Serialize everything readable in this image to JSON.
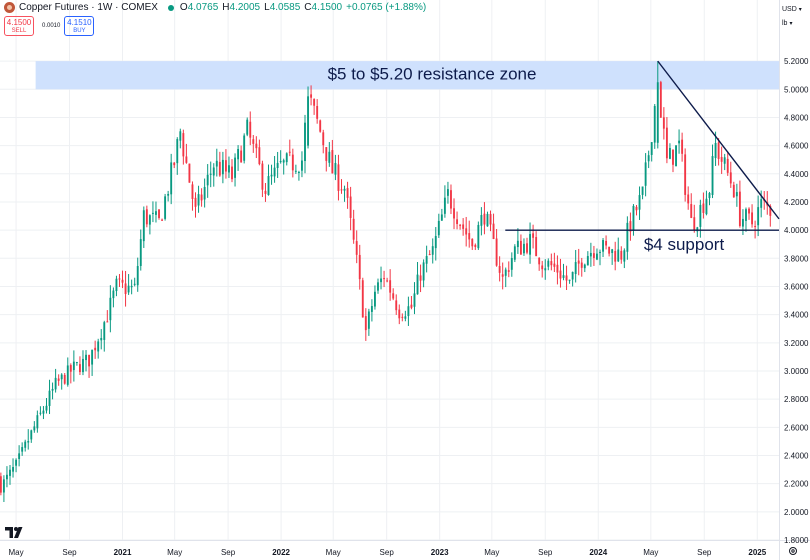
{
  "header": {
    "title": "Copper Futures · 1W · COMEX",
    "ohlc": [
      {
        "k": "O",
        "v": "4.0765"
      },
      {
        "k": "H",
        "v": "4.2005"
      },
      {
        "k": "L",
        "v": "4.0585"
      },
      {
        "k": "C",
        "v": "4.1500"
      },
      {
        "k": "",
        "v": "+0.0765 (+1.88%)"
      }
    ]
  },
  "trade": {
    "sell_price": "4.1500",
    "sell_label": "SELL",
    "spread": "0.0010",
    "buy_price": "4.1510",
    "buy_label": "BUY"
  },
  "controls": {
    "currency": "USD",
    "unit": "lb"
  },
  "colors": {
    "up": "#089981",
    "down": "#f23645",
    "zone": "#cfe1fd",
    "annotation": "#0d1b4b",
    "grid": "#eef0f3"
  },
  "icons": {
    "logo": "tradingview-logo-icon",
    "settings": "gear-icon",
    "symbol": "copper-icon"
  },
  "chart_data": {
    "type": "candlestick",
    "title": "",
    "xlabel": "",
    "ylabel": "",
    "ylim": [
      1.8,
      5.35
    ],
    "xlim": [
      "2020-03-25",
      "2025-02-20"
    ],
    "grid": true,
    "y_ticks": [
      "1.8000",
      "2.0000",
      "2.2000",
      "2.4000",
      "2.6000",
      "2.8000",
      "3.0000",
      "3.2000",
      "3.4000",
      "3.6000",
      "3.8000",
      "4.0000",
      "4.2000",
      "4.4000",
      "4.6000",
      "4.8000",
      "5.0000",
      "5.2000"
    ],
    "x_ticks": [
      {
        "label": "May",
        "date": "2020-05-01"
      },
      {
        "label": "Sep",
        "date": "2020-09-01"
      },
      {
        "label": "2021",
        "date": "2021-01-01"
      },
      {
        "label": "May",
        "date": "2021-05-01"
      },
      {
        "label": "Sep",
        "date": "2021-09-01"
      },
      {
        "label": "2022",
        "date": "2022-01-01"
      },
      {
        "label": "May",
        "date": "2022-05-01"
      },
      {
        "label": "Sep",
        "date": "2022-09-01"
      },
      {
        "label": "2023",
        "date": "2023-01-01"
      },
      {
        "label": "May",
        "date": "2023-05-01"
      },
      {
        "label": "Sep",
        "date": "2023-09-01"
      },
      {
        "label": "2024",
        "date": "2024-01-01"
      },
      {
        "label": "May",
        "date": "2024-05-01"
      },
      {
        "label": "Sep",
        "date": "2024-09-01"
      },
      {
        "label": "2025",
        "date": "2025-01-01"
      }
    ],
    "close_anchors": [
      [
        "2020-03-27",
        2.18
      ],
      [
        "2020-05-01",
        2.33
      ],
      [
        "2020-06-12",
        2.6
      ],
      [
        "2020-07-31",
        2.9
      ],
      [
        "2020-09-11",
        3.02
      ],
      [
        "2020-10-16",
        3.08
      ],
      [
        "2020-11-27",
        3.4
      ],
      [
        "2020-12-18",
        3.6
      ],
      [
        "2021-01-29",
        3.58
      ],
      [
        "2021-02-19",
        4.1
      ],
      [
        "2021-03-26",
        4.05
      ],
      [
        "2021-04-30",
        4.48
      ],
      [
        "2021-05-14",
        4.7
      ],
      [
        "2021-06-18",
        4.12
      ],
      [
        "2021-07-30",
        4.47
      ],
      [
        "2021-09-10",
        4.38
      ],
      [
        "2021-10-15",
        4.7
      ],
      [
        "2021-11-26",
        4.3
      ],
      [
        "2021-12-31",
        4.45
      ],
      [
        "2022-02-18",
        4.5
      ],
      [
        "2022-03-04",
        4.95
      ],
      [
        "2022-04-01",
        4.7
      ],
      [
        "2022-04-29",
        4.42
      ],
      [
        "2022-05-27",
        4.3
      ],
      [
        "2022-06-24",
        3.77
      ],
      [
        "2022-07-15",
        3.28
      ],
      [
        "2022-08-05",
        3.56
      ],
      [
        "2022-08-26",
        3.68
      ],
      [
        "2022-09-30",
        3.43
      ],
      [
        "2022-10-28",
        3.45
      ],
      [
        "2022-11-18",
        3.7
      ],
      [
        "2022-12-16",
        3.85
      ],
      [
        "2023-01-20",
        4.25
      ],
      [
        "2023-02-24",
        4.02
      ],
      [
        "2023-03-17",
        3.9
      ],
      [
        "2023-04-14",
        4.12
      ],
      [
        "2023-05-26",
        3.65
      ],
      [
        "2023-06-23",
        3.86
      ],
      [
        "2023-07-28",
        3.92
      ],
      [
        "2023-08-25",
        3.78
      ],
      [
        "2023-09-29",
        3.72
      ],
      [
        "2023-10-27",
        3.62
      ],
      [
        "2023-11-24",
        3.8
      ],
      [
        "2023-12-29",
        3.89
      ],
      [
        "2024-01-26",
        3.85
      ],
      [
        "2024-02-23",
        3.83
      ],
      [
        "2024-03-15",
        4.05
      ],
      [
        "2024-04-12",
        4.25
      ],
      [
        "2024-04-26",
        4.55
      ],
      [
        "2024-05-17",
        5.05
      ],
      [
        "2024-06-07",
        4.48
      ],
      [
        "2024-07-05",
        4.6
      ],
      [
        "2024-08-02",
        4.05
      ],
      [
        "2024-08-16",
        4.1
      ],
      [
        "2024-09-13",
        4.3
      ],
      [
        "2024-09-27",
        4.6
      ],
      [
        "2024-10-18",
        4.45
      ],
      [
        "2024-11-08",
        4.3
      ],
      [
        "2024-11-22",
        4.1
      ],
      [
        "2024-12-20",
        4.05
      ],
      [
        "2025-01-10",
        4.18
      ],
      [
        "2025-01-31",
        4.15
      ]
    ],
    "notable_candles": [
      {
        "date": "2024-05-17",
        "open": 4.62,
        "high": 5.2,
        "low": 4.58,
        "close": 5.05
      },
      {
        "date": "2022-03-04",
        "open": 4.6,
        "high": 5.02,
        "low": 4.58,
        "close": 4.95
      }
    ],
    "annotations": [
      {
        "type": "band",
        "y_range": [
          5.0,
          5.2
        ],
        "from": "2020-06-15",
        "to": "2025-02-20",
        "label": "$5 to $5.20 resistance zone"
      },
      {
        "type": "hline",
        "y": 4.0,
        "from": "2023-06-01",
        "to": "2025-02-20",
        "label": "$4 support"
      },
      {
        "type": "trendline",
        "points": [
          [
            "2024-05-17",
            5.2
          ],
          [
            "2025-02-20",
            4.08
          ]
        ],
        "label": ""
      }
    ]
  }
}
